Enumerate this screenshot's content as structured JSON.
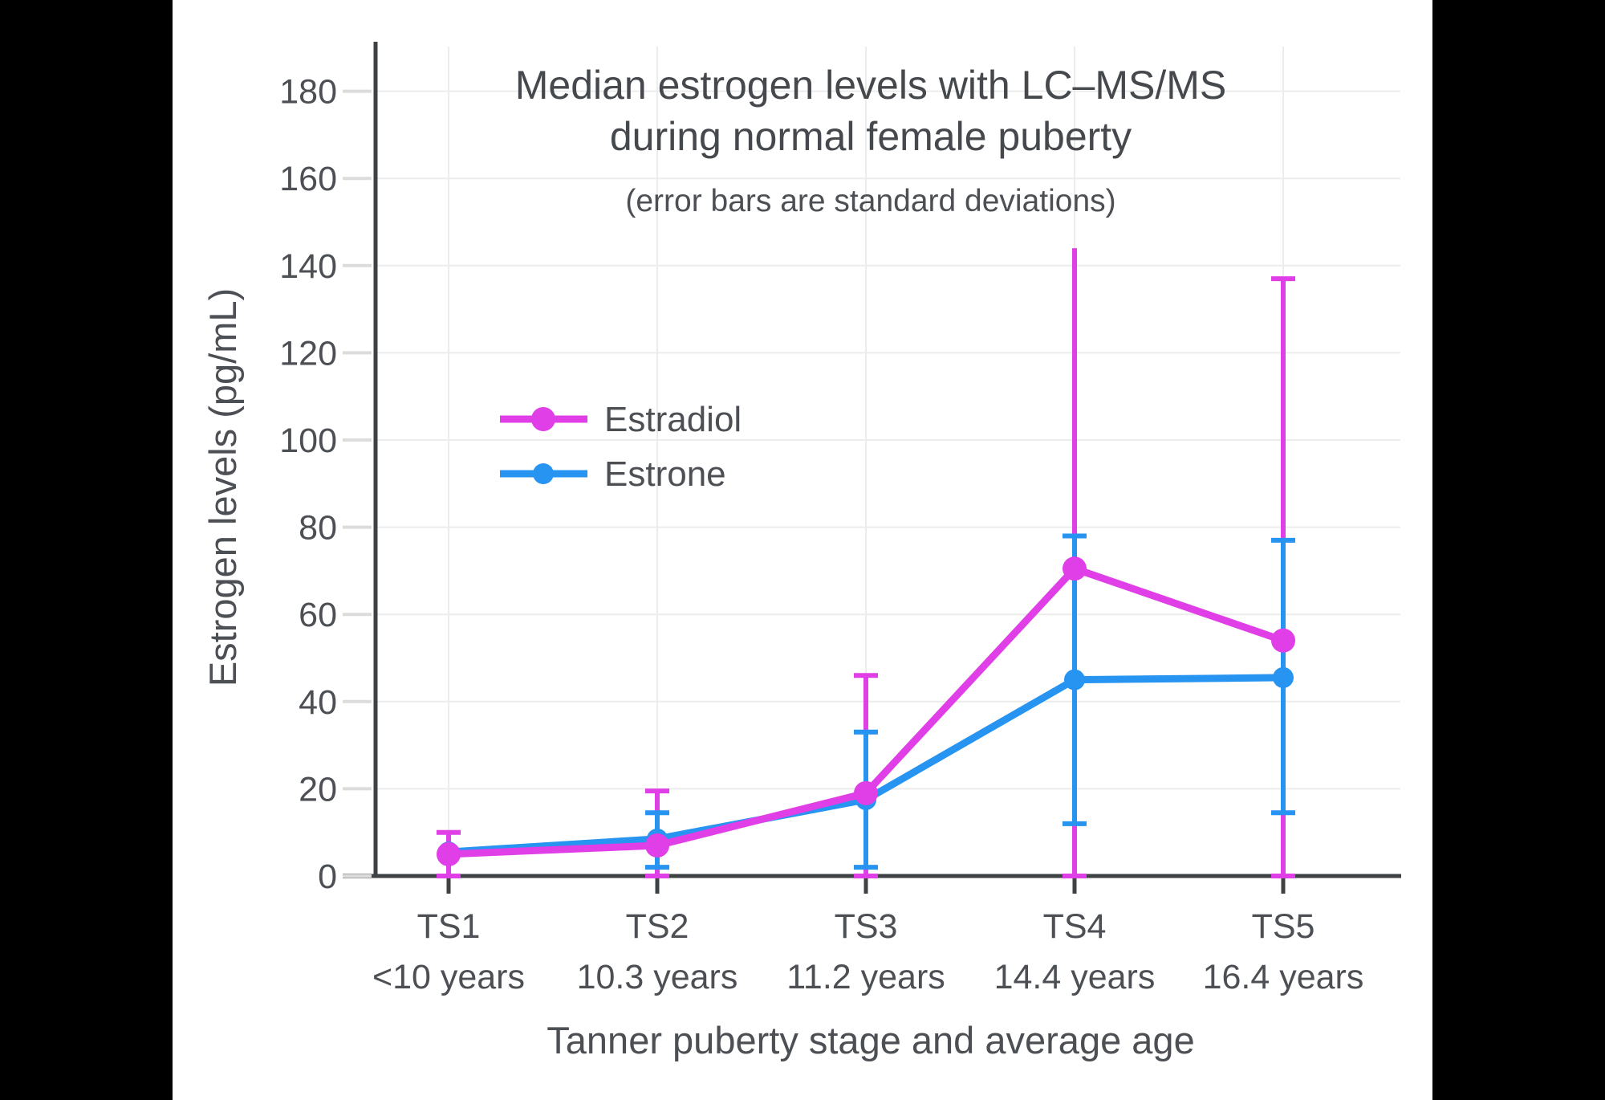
{
  "page": {
    "background": "#000000",
    "panel_background": "#ffffff"
  },
  "chart_data": {
    "type": "line",
    "title_line1": "Median estrogen levels with LC–MS/MS",
    "title_line2": "during normal female puberty",
    "subtitle": "(error bars are standard deviations)",
    "xlabel": "Tanner puberty stage and average age",
    "ylabel": "Estrogen levels (pg/mL)",
    "categories": [
      "TS1",
      "TS2",
      "TS3",
      "TS4",
      "TS5"
    ],
    "category_ages": [
      "<10 years",
      "10.3 years",
      "11.2 years",
      "14.4 years",
      "16.4 years"
    ],
    "yticks": [
      0,
      20,
      40,
      60,
      80,
      100,
      120,
      140,
      160,
      180
    ],
    "ylim": [
      0,
      190
    ],
    "grid": true,
    "legend_position": "inside-left",
    "series": [
      {
        "name": "Estradiol",
        "color": "#e03ee6",
        "values": [
          5,
          7,
          19,
          70.5,
          54
        ],
        "err_hi": [
          10,
          19.5,
          46,
          144,
          137
        ],
        "err_lo": [
          0,
          0,
          0,
          0,
          0
        ],
        "cap_hi": [
          true,
          true,
          true,
          false,
          true
        ],
        "marker_radius": 15
      },
      {
        "name": "Estrone",
        "color": "#2794f1",
        "values": [
          5.5,
          8.5,
          17.5,
          45,
          45.5
        ],
        "err_hi": [
          null,
          14.5,
          33,
          78,
          77
        ],
        "err_lo": [
          null,
          2,
          2,
          12,
          14.5
        ],
        "cap_hi": [
          null,
          true,
          true,
          true,
          true
        ],
        "marker_radius": 13
      }
    ],
    "colors": {
      "axis": "#3f4245",
      "text": "#4c4f54",
      "grid": "#ececec",
      "tick": "#dcdcdc"
    }
  }
}
